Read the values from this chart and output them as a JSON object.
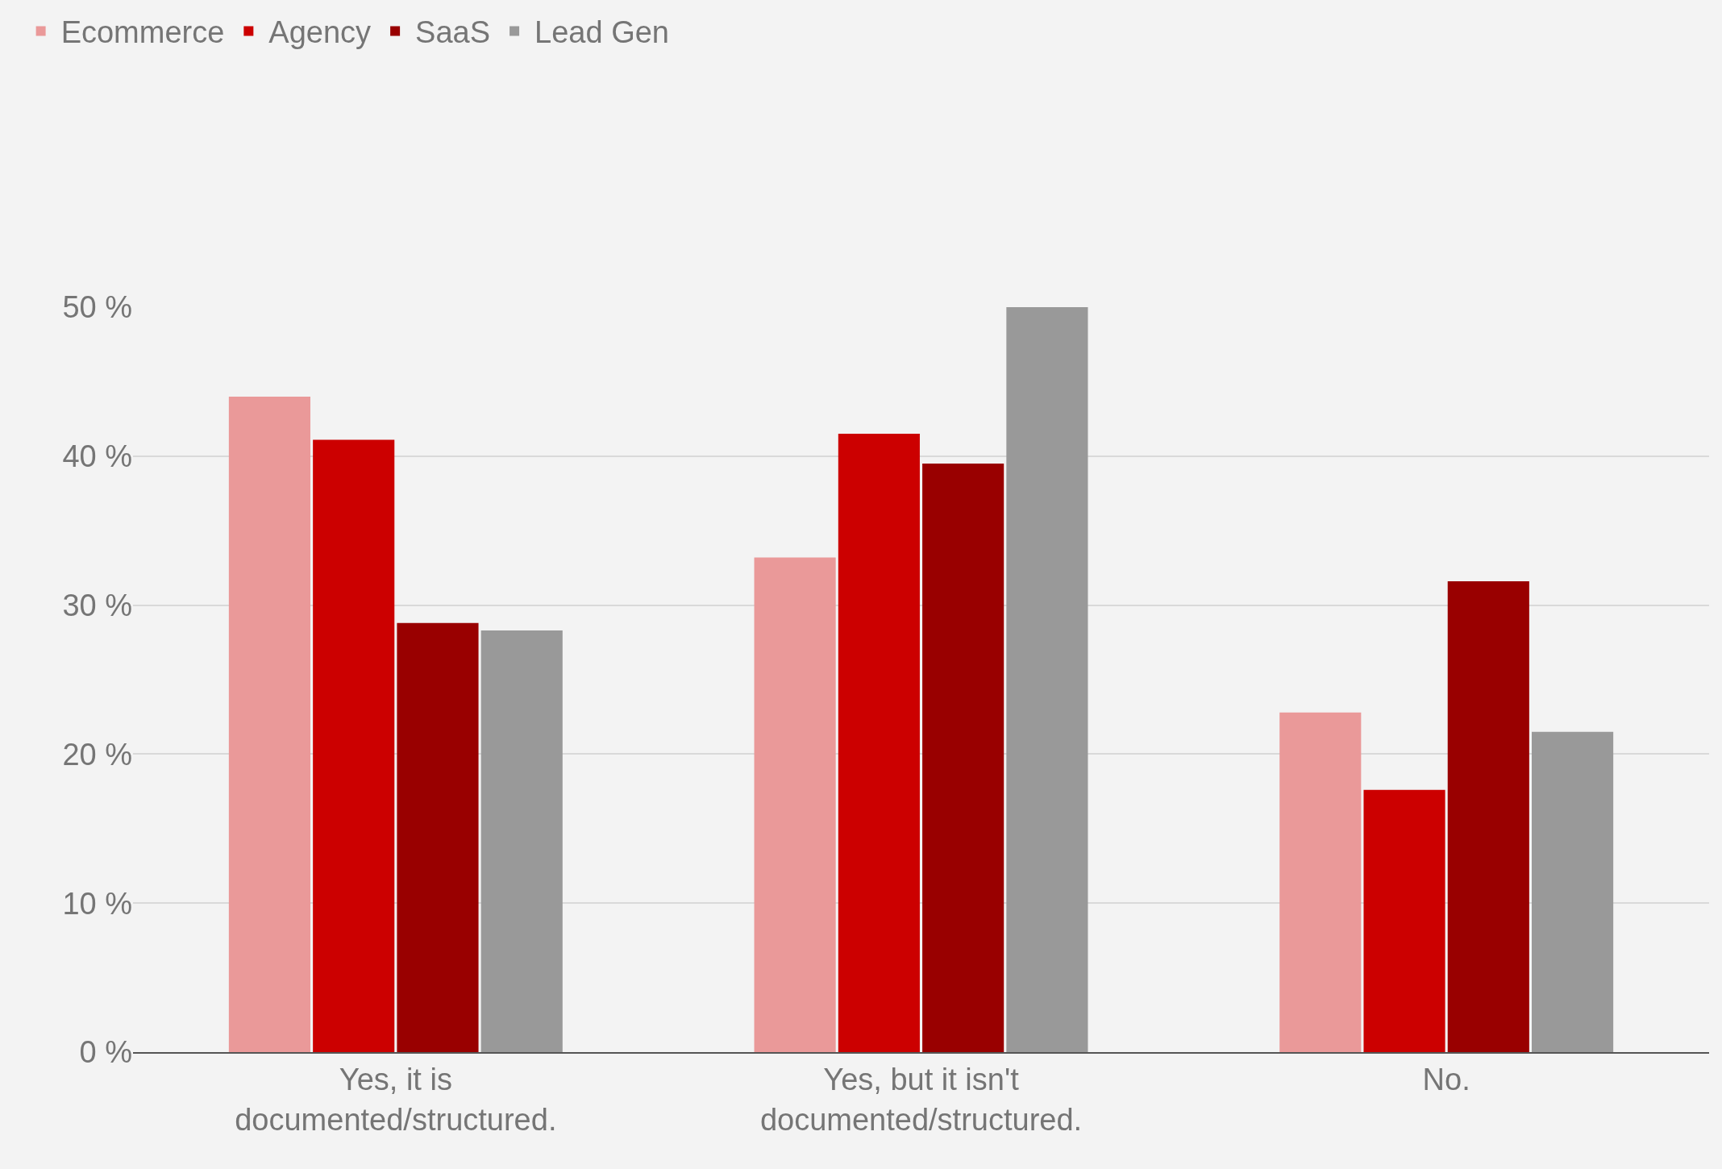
{
  "chart_data": {
    "type": "bar",
    "categories": [
      "Yes, it is documented/structured.",
      "Yes, but it isn't documented/structured.",
      "No."
    ],
    "series": [
      {
        "name": "Ecommerce",
        "color": "#ea9999",
        "values": [
          44,
          33.2,
          22.8
        ]
      },
      {
        "name": "Agency",
        "color": "#cc0000",
        "values": [
          41.1,
          41.5,
          17.6
        ]
      },
      {
        "name": "SaaS",
        "color": "#990000",
        "values": [
          28.8,
          39.5,
          31.6
        ]
      },
      {
        "name": "Lead Gen",
        "color": "#999999",
        "values": [
          28.3,
          50,
          21.5
        ]
      }
    ],
    "ylim": [
      0,
      50
    ],
    "yticks": [
      {
        "value": 0,
        "label": "0 %"
      },
      {
        "value": 10,
        "label": "10 %"
      },
      {
        "value": 20,
        "label": "20 %"
      },
      {
        "value": 30,
        "label": "30 %"
      },
      {
        "value": 40,
        "label": "40 %"
      },
      {
        "value": 50,
        "label": "50 %"
      }
    ],
    "grid": "y",
    "legend": "top left"
  }
}
